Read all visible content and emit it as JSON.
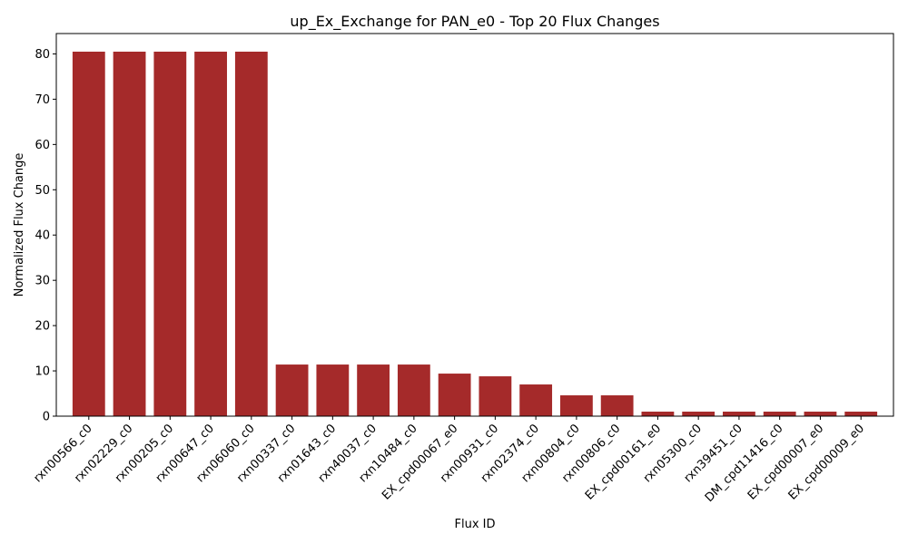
{
  "chart_data": {
    "type": "bar",
    "title": "up_Ex_Exchange for PAN_e0 - Top 20 Flux Changes",
    "xlabel": "Flux ID",
    "ylabel": "Normalized Flux Change",
    "ylim": [
      0,
      84.5
    ],
    "yticks": [
      0,
      10,
      20,
      30,
      40,
      50,
      60,
      70,
      80
    ],
    "bar_color": "#a52a2a",
    "grid": false,
    "categories": [
      "rxn00566_c0",
      "rxn02229_c0",
      "rxn00205_c0",
      "rxn00647_c0",
      "rxn06060_c0",
      "rxn00337_c0",
      "rxn01643_c0",
      "rxn40037_c0",
      "rxn10484_c0",
      "EX_cpd00067_e0",
      "rxn00931_c0",
      "rxn02374_c0",
      "rxn00804_c0",
      "rxn00806_c0",
      "EX_cpd00161_e0",
      "rxn05300_c0",
      "rxn39451_c0",
      "DM_cpd11416_c0",
      "EX_cpd00007_e0",
      "EX_cpd00009_e0"
    ],
    "values": [
      80.5,
      80.5,
      80.5,
      80.5,
      80.5,
      11.4,
      11.4,
      11.4,
      11.4,
      9.4,
      8.8,
      7.0,
      4.6,
      4.6,
      1.0,
      1.0,
      1.0,
      1.0,
      1.0,
      1.0
    ]
  }
}
